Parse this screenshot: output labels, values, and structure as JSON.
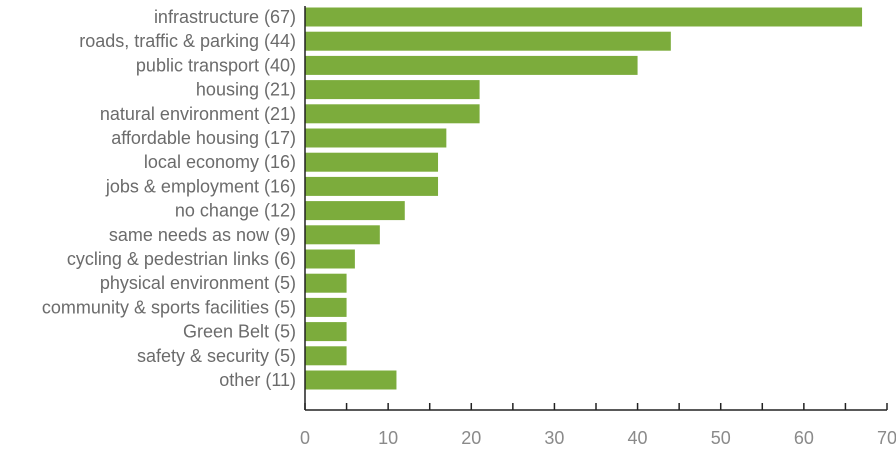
{
  "chart_data": {
    "type": "bar",
    "orientation": "horizontal",
    "categories": [
      "infrastructure (67)",
      "roads, traffic & parking (44)",
      "public transport (40)",
      "housing (21)",
      "natural environment (21)",
      "affordable housing (17)",
      "local economy (16)",
      "jobs & employment (16)",
      "no change (12)",
      "same needs as now (9)",
      "cycling & pedestrian links (6)",
      "physical environment (5)",
      "community & sports facilities (5)",
      "Green Belt (5)",
      "safety & security (5)",
      "other (11)"
    ],
    "values": [
      67,
      44,
      40,
      21,
      21,
      17,
      16,
      16,
      12,
      9,
      6,
      5,
      5,
      5,
      5,
      11
    ],
    "xlim": [
      0,
      70
    ],
    "x_ticks": [
      0,
      10,
      20,
      30,
      40,
      50,
      60,
      70
    ],
    "x_tick_labels": [
      "0",
      "10",
      "20",
      "30",
      "40",
      "50",
      "60",
      "70"
    ],
    "grid": false,
    "legend": "none",
    "bar_color": "#7cac3c",
    "title": "",
    "xlabel": "",
    "ylabel": ""
  }
}
